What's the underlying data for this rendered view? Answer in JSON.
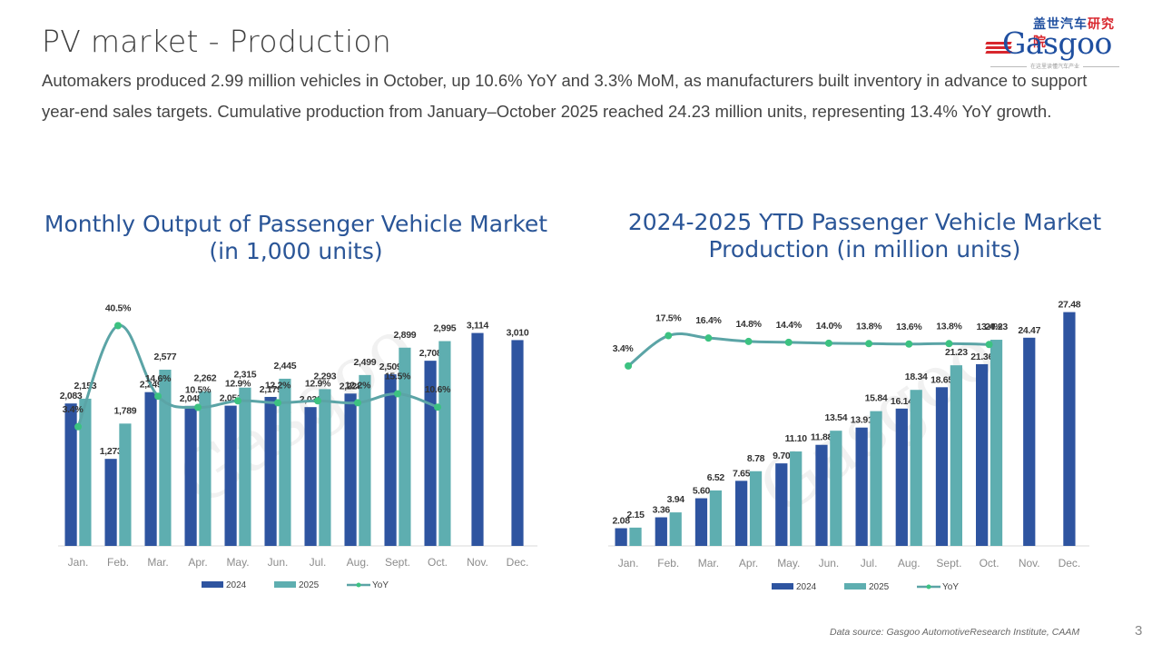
{
  "page": {
    "title": "PV market - Production",
    "body": "Automakers produced 2.99 million vehicles in October, up 10.6% YoY and 3.3% MoM, as manufacturers built inventory in advance to support year-end sales targets. Cumulative production from January–October 2025 reached 24.23 million units, representing 13.4% YoY growth.",
    "footnote": "Data source: Gasgoo AutomotiveResearch Institute, CAAM",
    "page_number": "3"
  },
  "logo": {
    "cn_part1": "盖世汽车",
    "cn_part2": "研究院",
    "word": "Gasgoo",
    "tagline": "在这里读懂汽车产业"
  },
  "watermark": "Gasgoo",
  "colors": {
    "series_2024": "#2e54a0",
    "series_2025": "#5eaeb0",
    "yoy_line": "#5ba4a6",
    "yoy_marker": "#3cc281",
    "title": "#2a5597",
    "axis": "#d9d9d9"
  },
  "chart_data": [
    {
      "id": "left",
      "type": "bar",
      "title_line1": "Monthly Output of Passenger Vehicle Market",
      "title_line2": "(in 1,000 units)",
      "xlabel": "",
      "ylabel": "",
      "categories": [
        "Jan.",
        "Feb.",
        "Mar.",
        "Apr.",
        "May.",
        "Jun.",
        "Jul.",
        "Aug.",
        "Sept.",
        "Oct.",
        "Nov.",
        "Dec."
      ],
      "series": [
        {
          "name": "2024",
          "values": [
            2083,
            1273,
            2249,
            2048,
            2051,
            2179,
            2030,
            2228,
            2509,
            2708,
            3114,
            3010
          ],
          "labels": [
            "2,083",
            "1,273",
            "2,249",
            "2,048",
            "2,051",
            "2,179",
            "2,030",
            "2,228",
            "2,509",
            "2,708",
            "3,114",
            "3,010"
          ]
        },
        {
          "name": "2025",
          "values": [
            2153,
            1789,
            2577,
            2262,
            2315,
            2445,
            2293,
            2499,
            2899,
            2995,
            null,
            null
          ],
          "labels": [
            "2,153",
            "1,789",
            "2,577",
            "2,262",
            "2,315",
            "2,445",
            "2,293",
            "2,499",
            "2,899",
            "2,995",
            "",
            ""
          ]
        }
      ],
      "line_series": {
        "name": "YoY",
        "values": [
          3.4,
          40.5,
          14.6,
          10.5,
          12.9,
          12.2,
          12.9,
          12.2,
          15.5,
          10.6
        ],
        "labels": [
          "3.4%",
          "40.5%",
          "14.6%",
          "10.5%",
          "12.9%",
          "12.2%",
          "12.9%",
          "12.2%",
          "15.5%",
          "10.6%"
        ],
        "smooth": true
      },
      "ylim": [
        0,
        3600
      ],
      "line_ylim": [
        -40,
        50
      ],
      "legend": [
        "2024",
        "2025",
        "YoY"
      ],
      "legend_position": "bottom",
      "grid": false
    },
    {
      "id": "right",
      "type": "bar",
      "title_line1": "2024-2025  YTD Passenger Vehicle Market",
      "title_line2": "Production (in million units)",
      "xlabel": "",
      "ylabel": "",
      "categories": [
        "Jan.",
        "Feb.",
        "Mar.",
        "Apr.",
        "May.",
        "Jun.",
        "Jul.",
        "Aug.",
        "Sept.",
        "Oct.",
        "Nov.",
        "Dec."
      ],
      "series": [
        {
          "name": "2024",
          "values": [
            2.08,
            3.36,
            5.6,
            7.65,
            9.7,
            11.88,
            13.91,
            16.14,
            18.65,
            21.36,
            24.47,
            27.48
          ],
          "labels": [
            "2.08",
            "3.36",
            "5.60",
            "7.65",
            "9.70",
            "11.88",
            "13.91",
            "16.14",
            "18.65",
            "21.36",
            "24.47",
            "27.48"
          ]
        },
        {
          "name": "2025",
          "values": [
            2.15,
            3.94,
            6.52,
            8.78,
            11.1,
            13.54,
            15.84,
            18.34,
            21.23,
            24.23,
            null,
            null
          ],
          "labels": [
            "2.15",
            "3.94",
            "6.52",
            "8.78",
            "11.10",
            "13.54",
            "15.84",
            "18.34",
            "21.23",
            "24.23",
            "",
            ""
          ]
        }
      ],
      "line_series": {
        "name": "YoY",
        "values": [
          3.4,
          17.5,
          16.4,
          14.8,
          14.4,
          14.0,
          13.8,
          13.6,
          13.8,
          13.4
        ],
        "labels": [
          "3.4%",
          "17.5%",
          "16.4%",
          "14.8%",
          "14.4%",
          "14.0%",
          "13.8%",
          "13.6%",
          "13.8%",
          "13.4%"
        ],
        "smooth": true
      },
      "ylim": [
        0,
        30
      ],
      "line_ylim": [
        -80,
        30
      ],
      "legend": [
        "2024",
        "2025",
        "YoY"
      ],
      "legend_position": "bottom",
      "grid": false
    }
  ]
}
